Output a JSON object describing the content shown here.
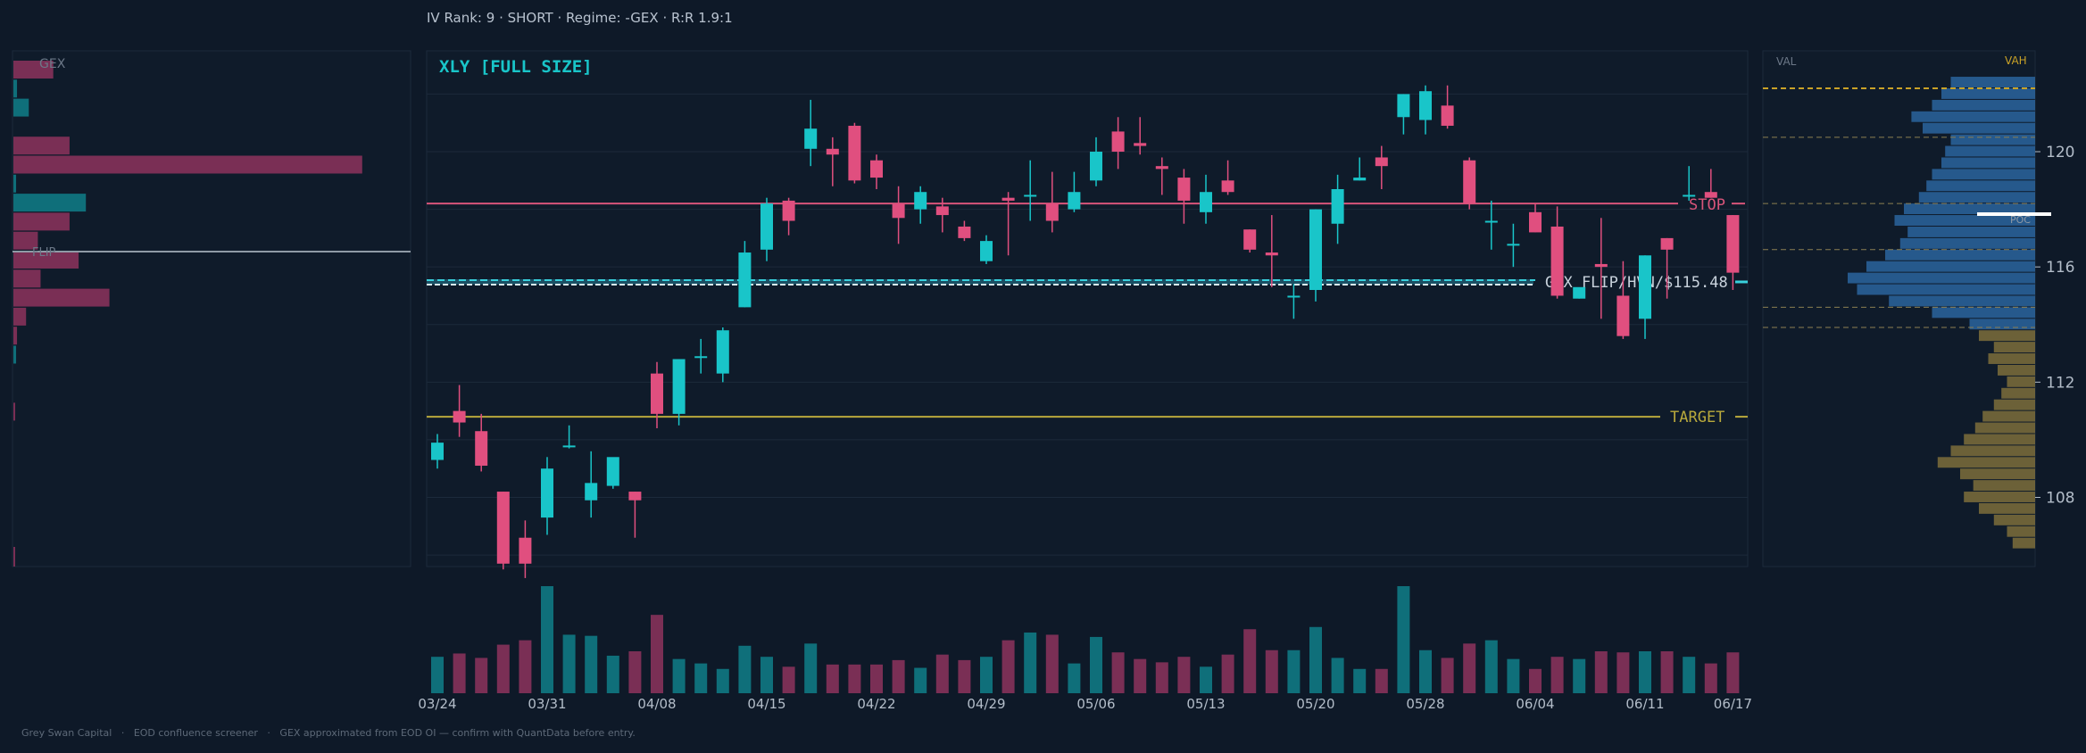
{
  "header": {
    "text": "IV Rank: 9  ·  SHORT  ·  Regime: -GEX  ·  R:R 1.9:1"
  },
  "footer": {
    "text": "Grey Swan Capital   ·   EOD confluence screener   ·   GEX approximated from EOD OI — confirm with QuantData before entry."
  },
  "colors": {
    "background": "#0e1928",
    "panel": "#0f1b2a",
    "up": "#19c5c9",
    "down": "#e04f7f",
    "up_volume": "#0f6f7a",
    "down_volume": "#7a2f55",
    "stop": "#d9557a",
    "target": "#b9a93c",
    "gex_flip": "#39d0dc",
    "title": "#19c5c9",
    "axis_text": "#b3bdc9",
    "grid": "#1c2a3b",
    "vp_blue": "#2f6fae",
    "vp_gold": "#8c7a3e",
    "vah": "#c9a227"
  },
  "chart_data": [
    {
      "type": "candlestick",
      "title": "XLY  [FULL SIZE]",
      "ylim": [
        105.6,
        123.5
      ],
      "yticks": [
        108,
        112,
        116,
        120
      ],
      "grid": true,
      "x_tick_labels": [
        {
          "i": 0,
          "label": "03/24"
        },
        {
          "i": 5,
          "label": "03/31"
        },
        {
          "i": 10,
          "label": "04/08"
        },
        {
          "i": 15,
          "label": "04/15"
        },
        {
          "i": 20,
          "label": "04/22"
        },
        {
          "i": 25,
          "label": "04/29"
        },
        {
          "i": 30,
          "label": "05/06"
        },
        {
          "i": 35,
          "label": "05/13"
        },
        {
          "i": 40,
          "label": "05/20"
        },
        {
          "i": 45,
          "label": "05/28"
        },
        {
          "i": 50,
          "label": "06/04"
        },
        {
          "i": 55,
          "label": "06/11"
        },
        {
          "i": 59,
          "label": "06/17"
        }
      ],
      "candles": [
        {
          "o": 109.3,
          "h": 110.2,
          "l": 109.0,
          "c": 109.9
        },
        {
          "o": 111.0,
          "h": 111.9,
          "l": 110.1,
          "c": 110.6
        },
        {
          "o": 110.3,
          "h": 110.9,
          "l": 108.9,
          "c": 109.1
        },
        {
          "o": 108.2,
          "h": 108.2,
          "l": 105.5,
          "c": 105.7
        },
        {
          "o": 106.6,
          "h": 107.2,
          "l": 105.2,
          "c": 105.7
        },
        {
          "o": 107.3,
          "h": 109.4,
          "l": 106.7,
          "c": 109.0
        },
        {
          "o": 109.8,
          "h": 110.5,
          "l": 109.7,
          "c": 109.8
        },
        {
          "o": 107.9,
          "h": 109.6,
          "l": 107.3,
          "c": 108.5
        },
        {
          "o": 108.4,
          "h": 109.3,
          "l": 108.3,
          "c": 109.4
        },
        {
          "o": 108.2,
          "h": 108.2,
          "l": 106.6,
          "c": 107.9
        },
        {
          "o": 112.3,
          "h": 112.7,
          "l": 110.4,
          "c": 110.9
        },
        {
          "o": 110.9,
          "h": 112.8,
          "l": 110.5,
          "c": 112.8
        },
        {
          "o": 112.9,
          "h": 113.5,
          "l": 112.3,
          "c": 112.9
        },
        {
          "o": 112.3,
          "h": 113.9,
          "l": 112.0,
          "c": 113.8
        },
        {
          "o": 114.6,
          "h": 116.9,
          "l": 114.6,
          "c": 116.5
        },
        {
          "o": 116.6,
          "h": 118.4,
          "l": 116.2,
          "c": 118.2
        },
        {
          "o": 118.3,
          "h": 118.4,
          "l": 117.1,
          "c": 117.6
        },
        {
          "o": 120.1,
          "h": 121.8,
          "l": 119.5,
          "c": 120.8
        },
        {
          "o": 120.1,
          "h": 120.5,
          "l": 118.8,
          "c": 119.9
        },
        {
          "o": 120.9,
          "h": 121.0,
          "l": 118.9,
          "c": 119.0
        },
        {
          "o": 119.7,
          "h": 119.9,
          "l": 118.7,
          "c": 119.1
        },
        {
          "o": 118.2,
          "h": 118.8,
          "l": 116.8,
          "c": 117.7
        },
        {
          "o": 118.0,
          "h": 118.8,
          "l": 117.5,
          "c": 118.6
        },
        {
          "o": 118.1,
          "h": 118.4,
          "l": 117.2,
          "c": 117.8
        },
        {
          "o": 117.4,
          "h": 117.6,
          "l": 116.9,
          "c": 117.0
        },
        {
          "o": 116.2,
          "h": 117.1,
          "l": 116.1,
          "c": 116.9
        },
        {
          "o": 118.4,
          "h": 118.6,
          "l": 116.4,
          "c": 118.3
        },
        {
          "o": 118.5,
          "h": 119.7,
          "l": 117.6,
          "c": 118.5
        },
        {
          "o": 118.2,
          "h": 119.3,
          "l": 117.2,
          "c": 117.6
        },
        {
          "o": 118.0,
          "h": 119.3,
          "l": 117.9,
          "c": 118.6
        },
        {
          "o": 119.0,
          "h": 120.5,
          "l": 118.8,
          "c": 120.0
        },
        {
          "o": 120.7,
          "h": 121.2,
          "l": 119.4,
          "c": 120.0
        },
        {
          "o": 120.3,
          "h": 121.2,
          "l": 119.9,
          "c": 120.2
        },
        {
          "o": 119.5,
          "h": 119.8,
          "l": 118.5,
          "c": 119.4
        },
        {
          "o": 119.1,
          "h": 119.4,
          "l": 117.5,
          "c": 118.3
        },
        {
          "o": 117.9,
          "h": 119.2,
          "l": 117.5,
          "c": 118.6
        },
        {
          "o": 119.0,
          "h": 119.7,
          "l": 118.5,
          "c": 118.6
        },
        {
          "o": 117.3,
          "h": 117.3,
          "l": 116.5,
          "c": 116.6
        },
        {
          "o": 116.5,
          "h": 117.8,
          "l": 115.3,
          "c": 116.4
        },
        {
          "o": 115.0,
          "h": 115.4,
          "l": 114.2,
          "c": 115.0
        },
        {
          "o": 115.2,
          "h": 118.0,
          "l": 114.8,
          "c": 118.0
        },
        {
          "o": 117.5,
          "h": 119.2,
          "l": 116.8,
          "c": 118.7
        },
        {
          "o": 119.0,
          "h": 119.8,
          "l": 119.0,
          "c": 119.1
        },
        {
          "o": 119.8,
          "h": 120.2,
          "l": 118.7,
          "c": 119.5
        },
        {
          "o": 121.2,
          "h": 122.0,
          "l": 120.6,
          "c": 122.0
        },
        {
          "o": 121.1,
          "h": 122.3,
          "l": 120.6,
          "c": 122.1
        },
        {
          "o": 121.6,
          "h": 122.3,
          "l": 120.8,
          "c": 120.9
        },
        {
          "o": 119.7,
          "h": 119.8,
          "l": 118.0,
          "c": 118.2
        },
        {
          "o": 117.6,
          "h": 118.3,
          "l": 116.6,
          "c": 117.6
        },
        {
          "o": 116.8,
          "h": 117.5,
          "l": 116.0,
          "c": 116.8
        },
        {
          "o": 117.9,
          "h": 118.2,
          "l": 117.2,
          "c": 117.2
        },
        {
          "o": 117.4,
          "h": 118.1,
          "l": 114.9,
          "c": 115.0
        },
        {
          "o": 114.9,
          "h": 115.2,
          "l": 114.9,
          "c": 115.3
        },
        {
          "o": 116.1,
          "h": 117.7,
          "l": 114.2,
          "c": 116.0
        },
        {
          "o": 115.0,
          "h": 116.2,
          "l": 113.5,
          "c": 113.6
        },
        {
          "o": 114.2,
          "h": 116.4,
          "l": 113.5,
          "c": 116.4
        },
        {
          "o": 117.0,
          "h": 117.0,
          "l": 114.9,
          "c": 116.6
        },
        {
          "o": 118.5,
          "h": 119.5,
          "l": 118.3,
          "c": 118.5
        },
        {
          "o": 118.6,
          "h": 119.4,
          "l": 118.4,
          "c": 118.4
        },
        {
          "o": 117.8,
          "h": 117.8,
          "l": 115.2,
          "c": 115.8
        }
      ],
      "levels": [
        {
          "name": "stop",
          "label": "STOP",
          "price": 118.2
        },
        {
          "name": "gex-flip",
          "label": "GEX FLIP/HVN/$115.48",
          "price": 115.48
        },
        {
          "name": "target",
          "label": "TARGET",
          "price": 110.8
        }
      ]
    },
    {
      "type": "bar",
      "title": "volume",
      "values": [
        33,
        36,
        32,
        44,
        48,
        97,
        53,
        52,
        34,
        38,
        71,
        31,
        27,
        22,
        43,
        33,
        24,
        45,
        26,
        26,
        26,
        30,
        23,
        35,
        30,
        33,
        48,
        55,
        53,
        27,
        51,
        37,
        31,
        28,
        33,
        24,
        35,
        58,
        39,
        39,
        60,
        32,
        22,
        22,
        97,
        39,
        32,
        45,
        48,
        31,
        22,
        33,
        31,
        38,
        37,
        38,
        38,
        33,
        27,
        37
      ]
    },
    {
      "type": "bar",
      "title": "GEX",
      "orientation": "horizontal",
      "values": [
        -4.4,
        0.4,
        1.7,
        0,
        -6.2,
        -38.5,
        0.3,
        8.0,
        -6.2,
        -2.7,
        -7.2,
        -3.0,
        -10.6,
        -1.4,
        -0.4,
        0.3,
        0,
        0,
        -0.2
      ],
      "flip_label": "FLIP"
    },
    {
      "type": "bar",
      "title": "volume profile",
      "orientation": "horizontal",
      "labels": [
        "VAL",
        "VAH",
        "POC"
      ],
      "bins": [
        {
          "lo": 106.2,
          "v": 0.12
        },
        {
          "lo": 106.6,
          "v": 0.15
        },
        {
          "lo": 107.0,
          "v": 0.22
        },
        {
          "lo": 107.4,
          "v": 0.3
        },
        {
          "lo": 107.8,
          "v": 0.38
        },
        {
          "lo": 108.2,
          "v": 0.33
        },
        {
          "lo": 108.6,
          "v": 0.4
        },
        {
          "lo": 109.0,
          "v": 0.52
        },
        {
          "lo": 109.4,
          "v": 0.45
        },
        {
          "lo": 109.8,
          "v": 0.38
        },
        {
          "lo": 110.2,
          "v": 0.32
        },
        {
          "lo": 110.6,
          "v": 0.28
        },
        {
          "lo": 111.0,
          "v": 0.22
        },
        {
          "lo": 111.4,
          "v": 0.18
        },
        {
          "lo": 111.8,
          "v": 0.15
        },
        {
          "lo": 112.2,
          "v": 0.2
        },
        {
          "lo": 112.6,
          "v": 0.25
        },
        {
          "lo": 113.0,
          "v": 0.22
        },
        {
          "lo": 113.4,
          "v": 0.3
        },
        {
          "lo": 113.8,
          "v": 0.35
        },
        {
          "lo": 114.2,
          "v": 0.55
        },
        {
          "lo": 114.6,
          "v": 0.78
        },
        {
          "lo": 115.0,
          "v": 0.95
        },
        {
          "lo": 115.4,
          "v": 1.0
        },
        {
          "lo": 115.8,
          "v": 0.9
        },
        {
          "lo": 116.2,
          "v": 0.8
        },
        {
          "lo": 116.6,
          "v": 0.72
        },
        {
          "lo": 117.0,
          "v": 0.68
        },
        {
          "lo": 117.4,
          "v": 0.75
        },
        {
          "lo": 117.8,
          "v": 0.7
        },
        {
          "lo": 118.2,
          "v": 0.62
        },
        {
          "lo": 118.6,
          "v": 0.58
        },
        {
          "lo": 119.0,
          "v": 0.55
        },
        {
          "lo": 119.4,
          "v": 0.5
        },
        {
          "lo": 119.8,
          "v": 0.48
        },
        {
          "lo": 120.2,
          "v": 0.45
        },
        {
          "lo": 120.6,
          "v": 0.6
        },
        {
          "lo": 121.0,
          "v": 0.66
        },
        {
          "lo": 121.4,
          "v": 0.55
        },
        {
          "lo": 121.8,
          "v": 0.5
        },
        {
          "lo": 122.2,
          "v": 0.45
        }
      ],
      "dashed_levels": [
        122.2,
        120.5,
        118.2,
        116.6,
        114.6,
        113.9
      ]
    }
  ]
}
